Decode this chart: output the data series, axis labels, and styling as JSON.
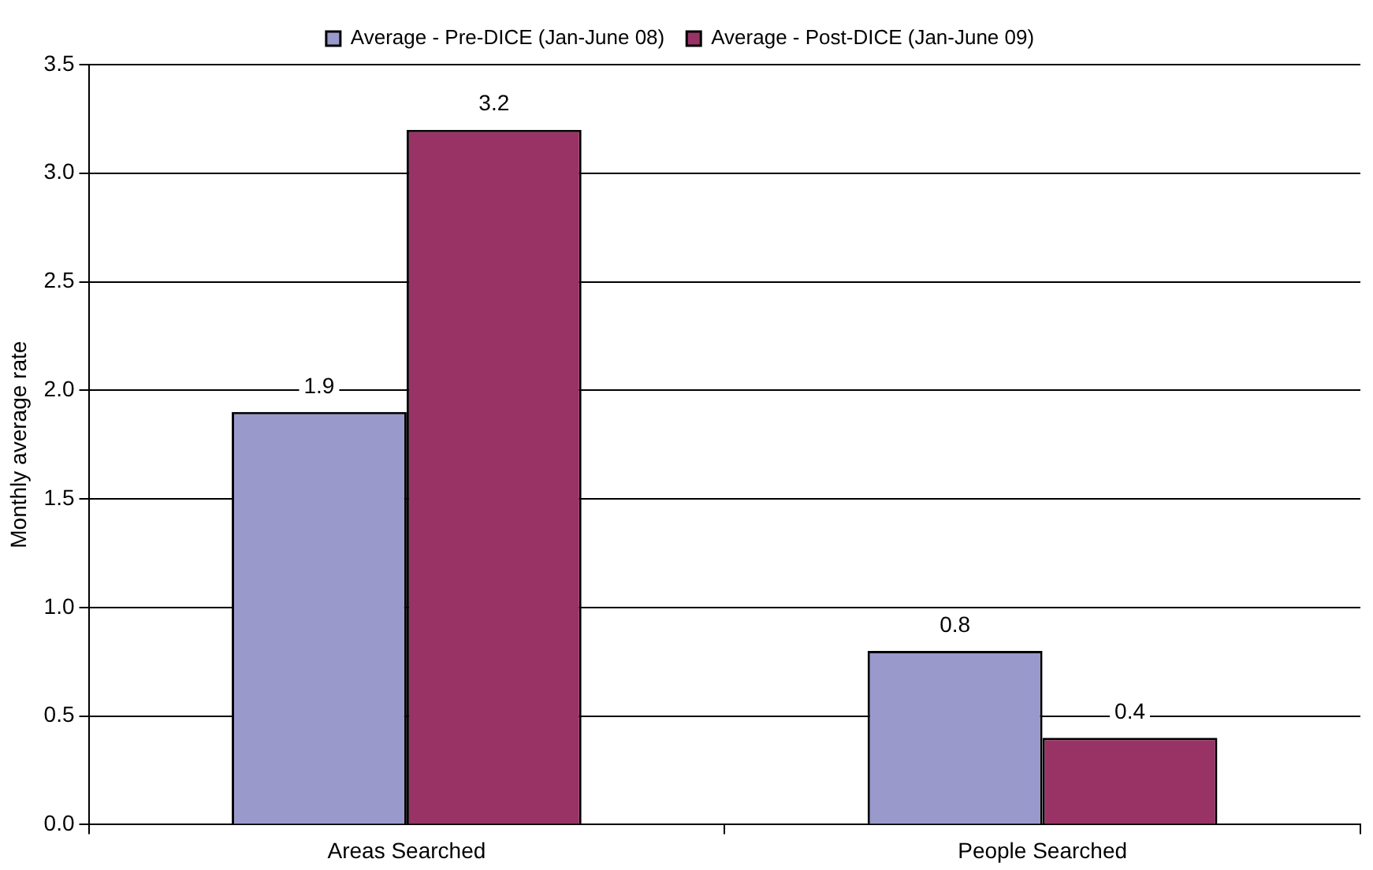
{
  "chart_data": {
    "type": "bar",
    "ylabel": "Monthly average rate",
    "categories": [
      "Areas Searched",
      "People Searched"
    ],
    "series": [
      {
        "name": "Average - Pre-DICE (Jan-June 08)",
        "color": "#9999cc",
        "values": [
          1.9,
          0.8
        ]
      },
      {
        "name": "Average - Post-DICE (Jan-June 09)",
        "color": "#993366",
        "values": [
          3.2,
          0.4
        ]
      }
    ],
    "ylim": [
      0,
      3.5
    ],
    "yticks": [
      {
        "value": 0,
        "label": "0.0"
      },
      {
        "value": 0.5,
        "label": "0.5"
      },
      {
        "value": 1,
        "label": "1.0"
      },
      {
        "value": 1.5,
        "label": "1.5"
      },
      {
        "value": 2,
        "label": "2.0"
      },
      {
        "value": 2.5,
        "label": "2.5"
      },
      {
        "value": 3,
        "label": "3.0"
      },
      {
        "value": 3.5,
        "label": "3.5"
      }
    ],
    "grid": "y",
    "legend": "top",
    "data_labels": true
  }
}
